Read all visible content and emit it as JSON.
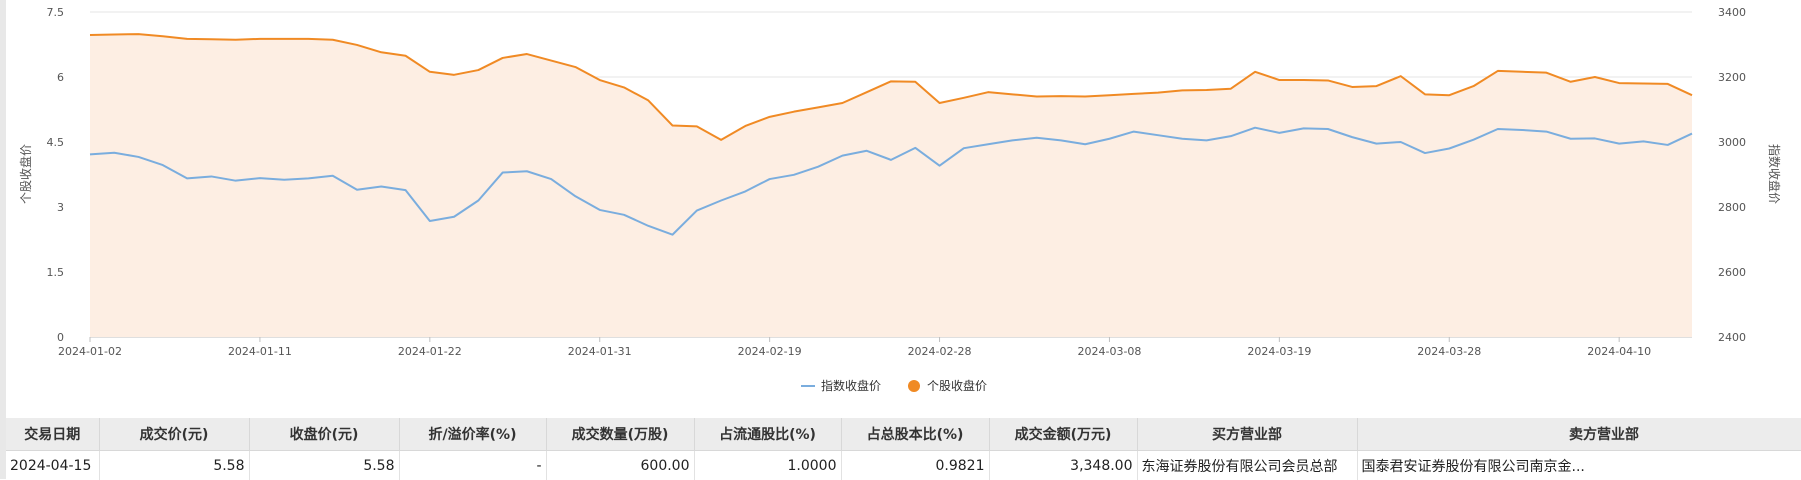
{
  "chart_data": {
    "type": "line",
    "x": [
      "2024-01-02",
      "2024-01-03",
      "2024-01-04",
      "2024-01-05",
      "2024-01-08",
      "2024-01-09",
      "2024-01-10",
      "2024-01-11",
      "2024-01-12",
      "2024-01-15",
      "2024-01-16",
      "2024-01-17",
      "2024-01-18",
      "2024-01-19",
      "2024-01-22",
      "2024-01-23",
      "2024-01-24",
      "2024-01-25",
      "2024-01-26",
      "2024-01-29",
      "2024-01-30",
      "2024-01-31",
      "2024-02-01",
      "2024-02-02",
      "2024-02-05",
      "2024-02-06",
      "2024-02-07",
      "2024-02-08",
      "2024-02-19",
      "2024-02-20",
      "2024-02-21",
      "2024-02-22",
      "2024-02-23",
      "2024-02-26",
      "2024-02-27",
      "2024-02-28",
      "2024-02-29",
      "2024-03-01",
      "2024-03-04",
      "2024-03-05",
      "2024-03-06",
      "2024-03-07",
      "2024-03-08",
      "2024-03-11",
      "2024-03-12",
      "2024-03-13",
      "2024-03-14",
      "2024-03-15",
      "2024-03-18",
      "2024-03-19",
      "2024-03-20",
      "2024-03-21",
      "2024-03-22",
      "2024-03-25",
      "2024-03-26",
      "2024-03-27",
      "2024-03-28",
      "2024-03-29",
      "2024-04-01",
      "2024-04-02",
      "2024-04-03",
      "2024-04-08",
      "2024-04-09",
      "2024-04-10",
      "2024-04-11",
      "2024-04-12",
      "2024-04-15"
    ],
    "x_ticks": [
      "2024-01-02",
      "2024-01-11",
      "2024-01-22",
      "2024-01-31",
      "2024-02-19",
      "2024-02-28",
      "2024-03-08",
      "2024-03-19",
      "2024-03-28",
      "2024-04-10"
    ],
    "series": [
      {
        "name": "指数收盘价",
        "axis": "right",
        "color": "#7aadde",
        "values": [
          2962,
          2967,
          2954,
          2929,
          2888,
          2894,
          2881,
          2889,
          2884,
          2888,
          2896,
          2853,
          2863,
          2852,
          2757,
          2770,
          2820,
          2906,
          2910,
          2886,
          2833,
          2791,
          2776,
          2742,
          2715,
          2789,
          2820,
          2848,
          2886,
          2899,
          2924,
          2958,
          2973,
          2945,
          2982,
          2927,
          2981,
          2993,
          3005,
          3013,
          3005,
          2993,
          3010,
          3032,
          3021,
          3010,
          3005,
          3018,
          3044,
          3028,
          3042,
          3040,
          3015,
          2995,
          3000,
          2966,
          2980,
          3007,
          3040,
          3037,
          3032,
          3010,
          3011,
          2995,
          3002,
          2991,
          3026
        ]
      },
      {
        "name": "个股收盘价",
        "axis": "left",
        "color": "#f08a24",
        "values": [
          6.97,
          6.98,
          6.99,
          6.94,
          6.88,
          6.87,
          6.86,
          6.88,
          6.88,
          6.88,
          6.86,
          6.74,
          6.57,
          6.49,
          6.12,
          6.05,
          6.16,
          6.44,
          6.53,
          6.38,
          6.23,
          5.93,
          5.76,
          5.46,
          4.88,
          4.86,
          4.55,
          4.87,
          5.08,
          5.2,
          5.3,
          5.4,
          5.65,
          5.9,
          5.89,
          5.4,
          5.52,
          5.65,
          5.6,
          5.55,
          5.56,
          5.55,
          5.58,
          5.61,
          5.64,
          5.69,
          5.7,
          5.73,
          6.12,
          5.93,
          5.93,
          5.92,
          5.77,
          5.79,
          6.02,
          5.6,
          5.58,
          5.79,
          6.14,
          6.12,
          6.1,
          5.89,
          6.0,
          5.86,
          5.85,
          5.84,
          5.58
        ]
      }
    ],
    "y_left": {
      "label": "个股收盘价",
      "ticks": [
        "0",
        "1.5",
        "3",
        "4.5",
        "6",
        "7.5"
      ],
      "min": 0,
      "max": 7.5
    },
    "y_right": {
      "label": "指数收盘价",
      "ticks": [
        "2400",
        "2600",
        "2800",
        "3000",
        "3200",
        "3400"
      ],
      "min": 2400,
      "max": 3400
    },
    "legend_position": "bottom-center",
    "grid": true
  },
  "table": {
    "headers": [
      "交易日期",
      "成交价(元)",
      "收盘价(元)",
      "折/溢价率(%)",
      "成交数量(万股)",
      "占流通股比(%)",
      "占总股本比(%)",
      "成交金额(万元)",
      "买方营业部",
      "卖方营业部"
    ],
    "rows": [
      [
        "2024-04-15",
        "5.58",
        "5.58",
        "-",
        "600.00",
        "1.0000",
        "0.9821",
        "3,348.00",
        "东海证券股份有限公司会员总部",
        "国泰君安证券股份有限公司南京金..."
      ]
    ]
  }
}
